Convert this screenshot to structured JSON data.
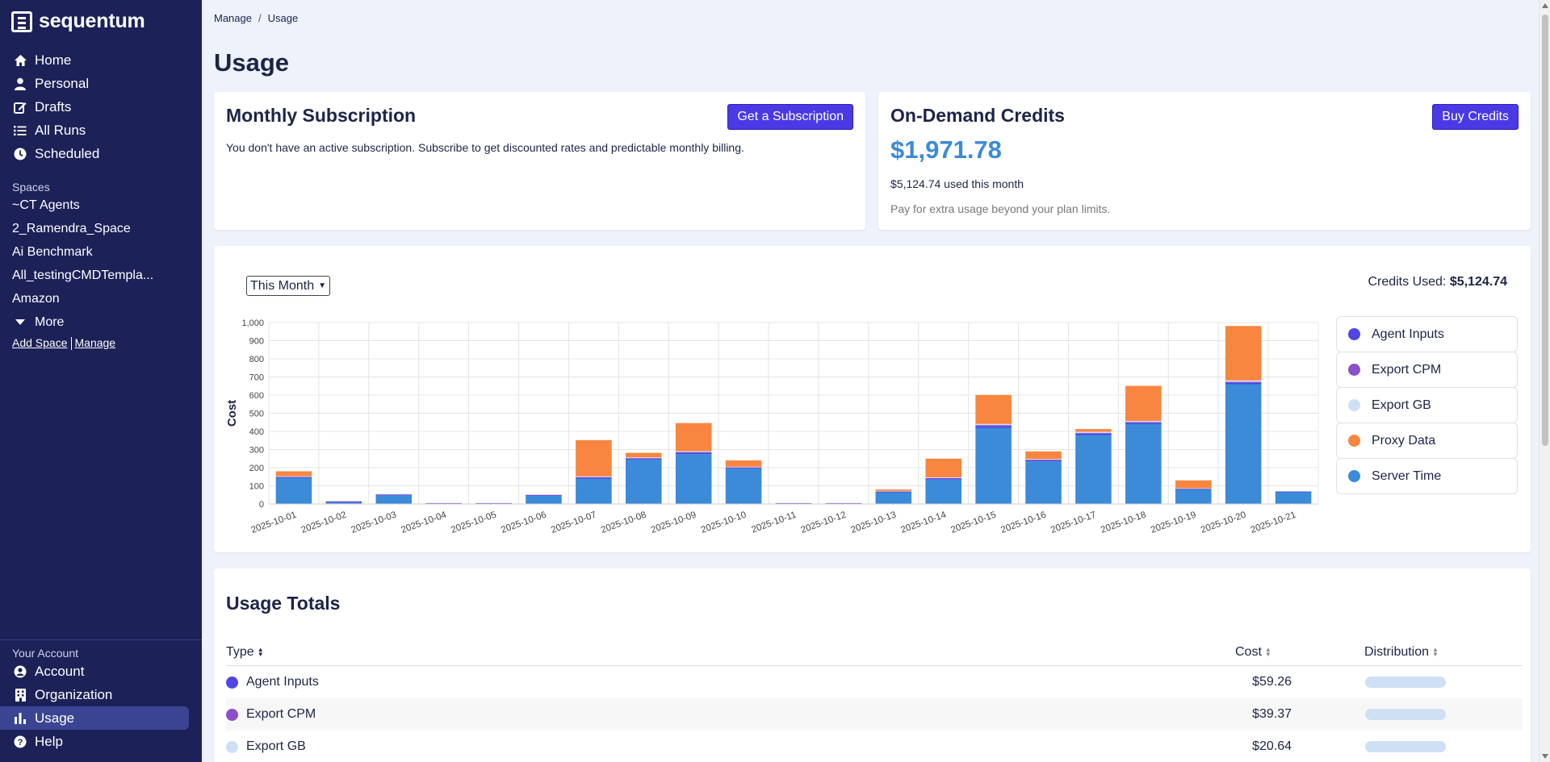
{
  "app": {
    "name": "sequentum"
  },
  "sidebar": {
    "nav": [
      {
        "label": "Home",
        "icon": "home-icon"
      },
      {
        "label": "Personal",
        "icon": "user-icon"
      },
      {
        "label": "Drafts",
        "icon": "edit-icon"
      },
      {
        "label": "All Runs",
        "icon": "list-icon"
      },
      {
        "label": "Scheduled",
        "icon": "clock-icon"
      }
    ],
    "spaces_label": "Spaces",
    "spaces": [
      "~CT Agents",
      "2_Ramendra_Space",
      "Ai Benchmark",
      "All_testingCMDTempla...",
      "Amazon"
    ],
    "more_label": "More",
    "add_space_label": "Add Space",
    "manage_label": "Manage",
    "account_label": "Your Account",
    "account": [
      {
        "label": "Account",
        "icon": "account-circle-icon"
      },
      {
        "label": "Organization",
        "icon": "building-icon"
      },
      {
        "label": "Usage",
        "icon": "bar-chart-icon"
      },
      {
        "label": "Help",
        "icon": "help-icon"
      }
    ]
  },
  "breadcrumb": {
    "parent": "Manage",
    "separator": "/",
    "current": "Usage"
  },
  "page_title": "Usage",
  "subscription": {
    "title": "Monthly Subscription",
    "button": "Get a Subscription",
    "text": "You don't have an active subscription. Subscribe to get discounted rates and predictable monthly billing."
  },
  "credits": {
    "title": "On-Demand Credits",
    "button": "Buy Credits",
    "balance": "$1,971.78",
    "used_text": "$5,124.74 used this month",
    "note": "Pay for extra usage beyond your plan limits."
  },
  "chart_card": {
    "period": "This Month",
    "credits_used_label": "Credits Used:",
    "credits_used_value": "$5,124.74"
  },
  "colors": {
    "agent_inputs": "#4f46e5",
    "export_cpm": "#8b4fc9",
    "export_gb": "#cfe0f4",
    "proxy_data": "#f98640",
    "server_time": "#3b8bd9"
  },
  "chart_data": {
    "type": "bar",
    "stacked": true,
    "ylabel": "Cost",
    "xlabel": "",
    "ylim": [
      0,
      1000
    ],
    "yticks": [
      "0",
      "100",
      "200",
      "300",
      "400",
      "500",
      "600",
      "700",
      "800",
      "900",
      "1,000"
    ],
    "categories": [
      "2025-10-01",
      "2025-10-02",
      "2025-10-03",
      "2025-10-04",
      "2025-10-05",
      "2025-10-06",
      "2025-10-07",
      "2025-10-08",
      "2025-10-09",
      "2025-10-10",
      "2025-10-11",
      "2025-10-12",
      "2025-10-13",
      "2025-10-14",
      "2025-10-15",
      "2025-10-16",
      "2025-10-17",
      "2025-10-18",
      "2025-10-19",
      "2025-10-20",
      "2025-10-21"
    ],
    "series": [
      {
        "name": "Server Time",
        "color": "#3b8bd9",
        "values": [
          145,
          8,
          48,
          3,
          3,
          45,
          140,
          245,
          275,
          195,
          3,
          3,
          65,
          135,
          420,
          235,
          380,
          440,
          80,
          660,
          65
        ]
      },
      {
        "name": "Agent Inputs",
        "color": "#4f46e5",
        "values": [
          3,
          3,
          3,
          1,
          1,
          3,
          5,
          5,
          8,
          5,
          1,
          1,
          3,
          5,
          10,
          6,
          8,
          8,
          3,
          10,
          3
        ]
      },
      {
        "name": "Export CPM",
        "color": "#8b4fc9",
        "values": [
          2,
          4,
          2,
          1,
          1,
          2,
          3,
          3,
          3,
          2,
          1,
          1,
          2,
          3,
          5,
          3,
          4,
          4,
          2,
          3,
          2
        ]
      },
      {
        "name": "Export GB",
        "color": "#cfe0f4",
        "values": [
          3,
          3,
          3,
          0,
          0,
          3,
          4,
          4,
          5,
          3,
          0,
          0,
          2,
          4,
          6,
          4,
          6,
          6,
          2,
          8,
          2
        ]
      },
      {
        "name": "Proxy Data",
        "color": "#f98640",
        "values": [
          27,
          0,
          0,
          0,
          0,
          0,
          200,
          25,
          155,
          35,
          0,
          0,
          8,
          103,
          160,
          42,
          15,
          193,
          43,
          300,
          0
        ]
      }
    ],
    "legend": [
      "Agent Inputs",
      "Export CPM",
      "Export GB",
      "Proxy Data",
      "Server Time"
    ],
    "legend_position": "right"
  },
  "totals": {
    "title": "Usage Totals",
    "headers": {
      "type": "Type",
      "cost": "Cost",
      "distribution": "Distribution"
    },
    "rows": [
      {
        "type": "Agent Inputs",
        "cost": "$59.26",
        "color": "#4f46e5",
        "share": 0.012
      },
      {
        "type": "Export CPM",
        "cost": "$39.37",
        "color": "#8b4fc9",
        "share": 0.008
      },
      {
        "type": "Export GB",
        "cost": "$20.64",
        "color": "#cfe0f4",
        "share": 0.004
      }
    ]
  }
}
